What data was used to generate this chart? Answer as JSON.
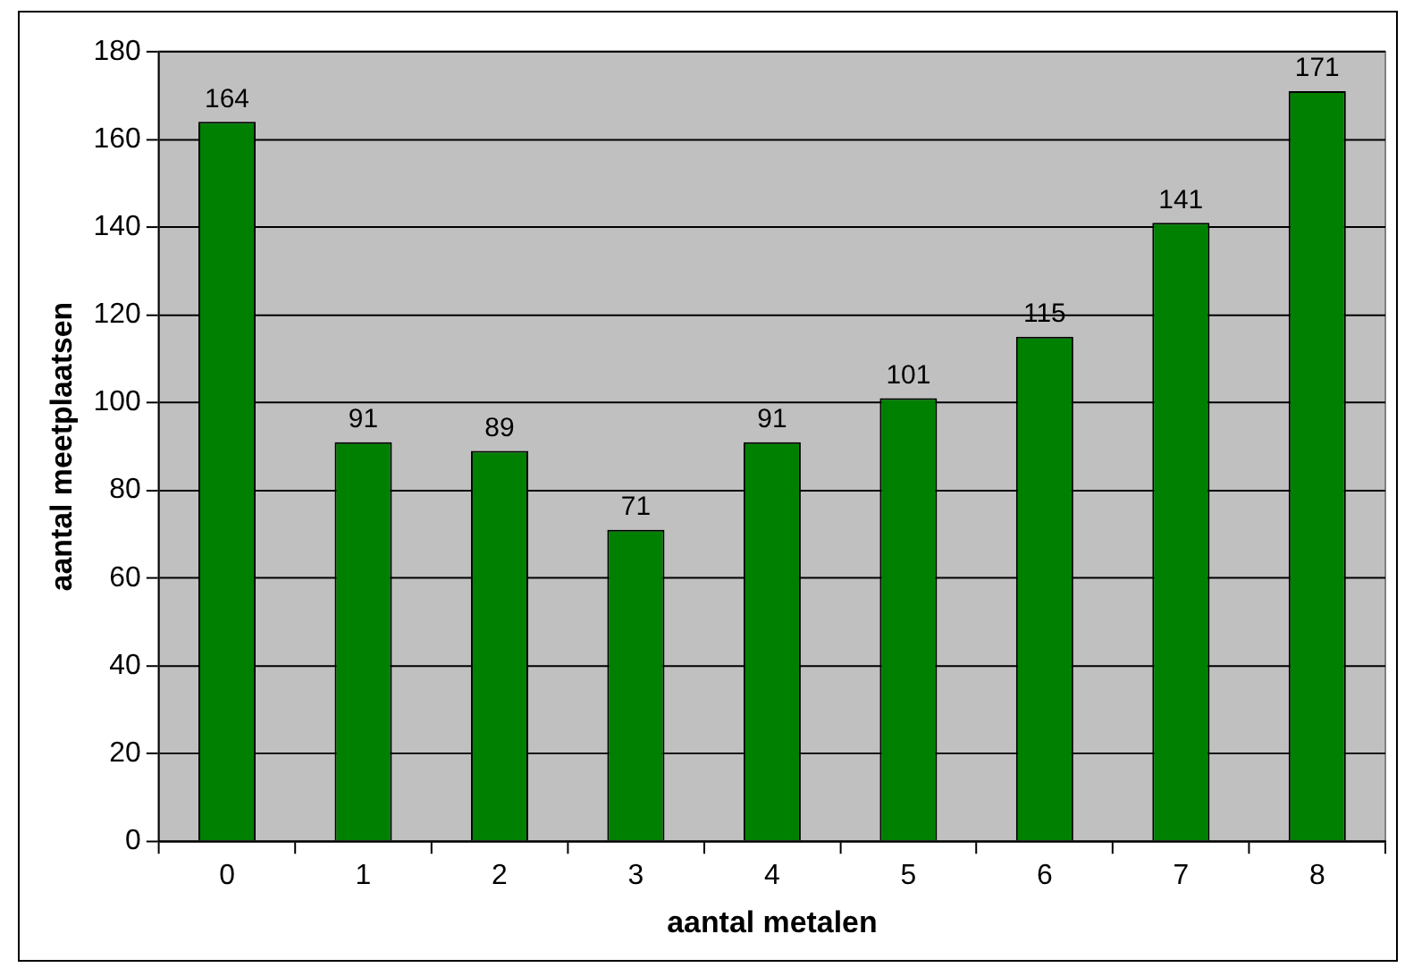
{
  "chart_data": {
    "type": "bar",
    "xlabel": "aantal metalen",
    "ylabel": "aantal meetplaatsen",
    "categories": [
      "0",
      "1",
      "2",
      "3",
      "4",
      "5",
      "6",
      "7",
      "8"
    ],
    "values": [
      164,
      91,
      89,
      71,
      91,
      101,
      115,
      141,
      171
    ],
    "color": "#008000",
    "ylim": [
      0,
      180
    ],
    "yticks": [
      0,
      20,
      40,
      60,
      80,
      100,
      120,
      140,
      160,
      180
    ],
    "grid": "y",
    "legend": false,
    "data_labels": true
  }
}
